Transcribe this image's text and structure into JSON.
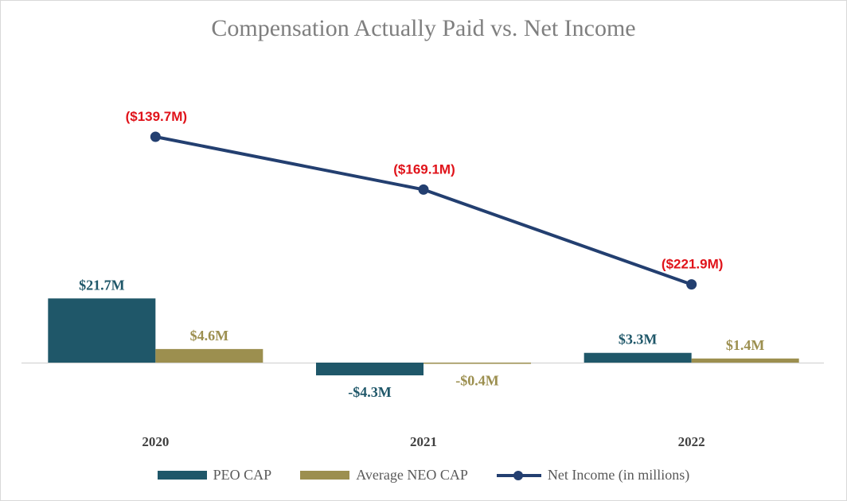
{
  "chart_data": {
    "type": "bar+line",
    "title": "Compensation Actually Paid vs. Net Income",
    "categories": [
      "2020",
      "2021",
      "2022"
    ],
    "series": [
      {
        "name": "PEO CAP",
        "kind": "bar",
        "color": "#1f5769",
        "values": [
          21.7,
          -4.3,
          3.3
        ],
        "labels": [
          "$21.7M",
          "-$4.3M",
          "$3.3M"
        ],
        "label_color": "#1f5769"
      },
      {
        "name": "Average NEO CAP",
        "kind": "bar",
        "color": "#9c8f4f",
        "values": [
          4.6,
          -0.4,
          1.4
        ],
        "labels": [
          "$4.6M",
          "-$0.4M",
          "$1.4M"
        ],
        "label_color": "#9c8f4f"
      },
      {
        "name": "Net Income (in millions)",
        "kind": "line",
        "color": "#233f70",
        "values": [
          -139.7,
          -169.1,
          -221.9
        ],
        "labels": [
          "($139.7M)",
          "($169.1M)",
          "($221.9M)"
        ],
        "label_color": "#e0131a"
      }
    ],
    "legend_position": "bottom",
    "grid": false
  }
}
